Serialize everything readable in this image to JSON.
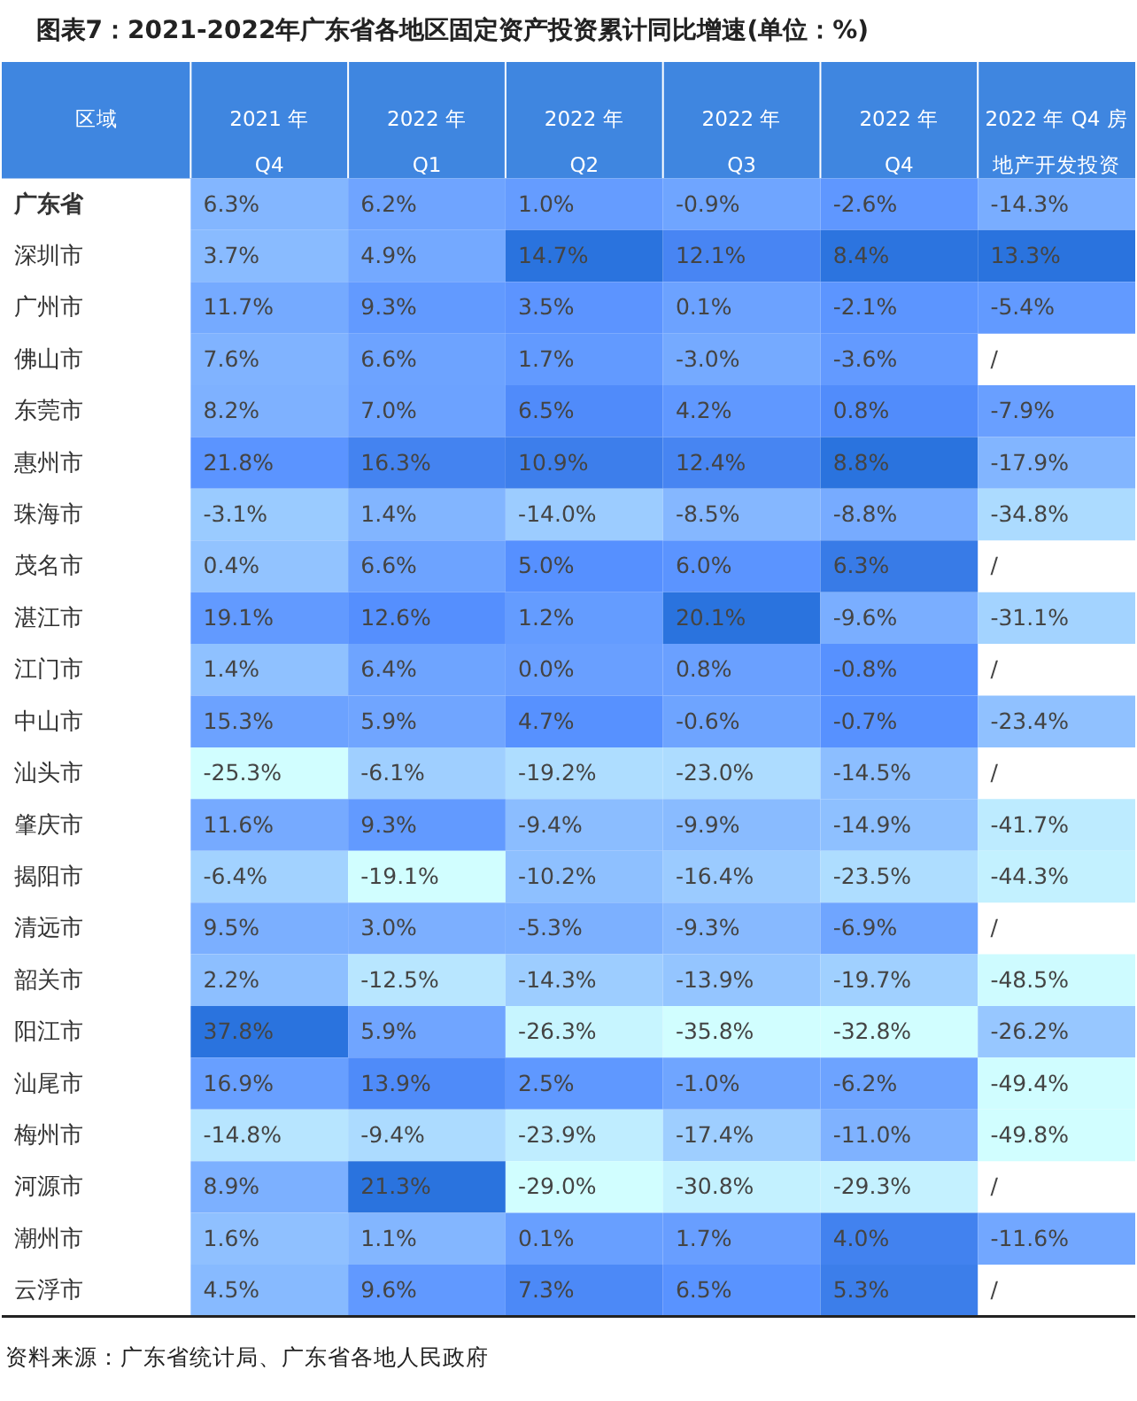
{
  "chart_data": {
    "type": "heatmap",
    "title": "图表7：2021-2022年广东省各地区固定资产投资累计同比增速(单位：%)",
    "ylabel": "区域",
    "categories": [
      "2021 年\nQ4",
      "2022 年\nQ1",
      "2022 年\nQ2",
      "2022 年\nQ3",
      "2022 年\nQ4",
      "2022 年 Q4 房地产开发投资"
    ],
    "y_categories": [
      "广东省",
      "深圳市",
      "广州市",
      "佛山市",
      "东莞市",
      "惠州市",
      "珠海市",
      "茂名市",
      "湛江市",
      "江门市",
      "中山市",
      "汕头市",
      "肇庆市",
      "揭阳市",
      "清远市",
      "韶关市",
      "阳江市",
      "汕尾市",
      "梅州市",
      "河源市",
      "潮州市",
      "云浮市"
    ],
    "colors": [
      "#ffffff",
      "#2a73de"
    ],
    "cells": [
      [
        6.3,
        6.2,
        1.0,
        -0.9,
        -2.6,
        -14.3
      ],
      [
        3.7,
        4.9,
        14.7,
        12.1,
        8.4,
        13.3
      ],
      [
        11.7,
        9.3,
        3.5,
        0.1,
        -2.1,
        -5.4
      ],
      [
        7.6,
        6.6,
        1.7,
        -3.0,
        -3.6,
        null
      ],
      [
        8.2,
        7.0,
        6.5,
        4.2,
        0.8,
        -7.9
      ],
      [
        21.8,
        16.3,
        10.9,
        12.4,
        8.8,
        -17.9
      ],
      [
        -3.1,
        1.4,
        -14.0,
        -8.5,
        -8.8,
        -34.8
      ],
      [
        0.4,
        6.6,
        5.0,
        6.0,
        6.3,
        null
      ],
      [
        19.1,
        12.6,
        1.2,
        20.1,
        -9.6,
        -31.1
      ],
      [
        1.4,
        6.4,
        0.0,
        0.8,
        -0.8,
        null
      ],
      [
        15.3,
        5.9,
        4.7,
        -0.6,
        -0.7,
        -23.4
      ],
      [
        -25.3,
        -6.1,
        -19.2,
        -23.0,
        -14.5,
        null
      ],
      [
        11.6,
        9.3,
        -9.4,
        -9.9,
        -14.9,
        -41.7
      ],
      [
        -6.4,
        -19.1,
        -10.2,
        -16.4,
        -23.5,
        -44.3
      ],
      [
        9.5,
        3.0,
        -5.3,
        -9.3,
        -6.9,
        null
      ],
      [
        2.2,
        -12.5,
        -14.3,
        -13.9,
        -19.7,
        -48.5
      ],
      [
        37.8,
        5.9,
        -26.3,
        -35.8,
        -32.8,
        -26.2
      ],
      [
        16.9,
        13.9,
        2.5,
        -1.0,
        -6.2,
        -49.4
      ],
      [
        -14.8,
        -9.4,
        -23.9,
        -17.4,
        -11.0,
        -49.8
      ],
      [
        8.9,
        21.3,
        -29.0,
        -30.8,
        -29.3,
        null
      ],
      [
        1.6,
        1.1,
        0.1,
        1.7,
        4.0,
        -11.6
      ],
      [
        4.5,
        9.6,
        7.3,
        6.5,
        5.3,
        null
      ]
    ],
    "cell_labels": [
      [
        "6.3%",
        "6.2%",
        "1.0%",
        "-0.9%",
        "-2.6%",
        "-14.3%"
      ],
      [
        "3.7%",
        "4.9%",
        "14.7%",
        "12.1%",
        "8.4%",
        "13.3%"
      ],
      [
        "11.7%",
        "9.3%",
        "3.5%",
        "0.1%",
        "-2.1%",
        "-5.4%"
      ],
      [
        "7.6%",
        "6.6%",
        "1.7%",
        "-3.0%",
        "-3.6%",
        "/"
      ],
      [
        "8.2%",
        "7.0%",
        "6.5%",
        "4.2%",
        "0.8%",
        "-7.9%"
      ],
      [
        "21.8%",
        "16.3%",
        "10.9%",
        "12.4%",
        "8.8%",
        "-17.9%"
      ],
      [
        "-3.1%",
        "1.4%",
        "-14.0%",
        "-8.5%",
        "-8.8%",
        "-34.8%"
      ],
      [
        "0.4%",
        "6.6%",
        "5.0%",
        "6.0%",
        "6.3%",
        "/"
      ],
      [
        "19.1%",
        "12.6%",
        "1.2%",
        "20.1%",
        "-9.6%",
        "-31.1%"
      ],
      [
        "1.4%",
        "6.4%",
        "0.0%",
        "0.8%",
        "-0.8%",
        "/"
      ],
      [
        "15.3%",
        "5.9%",
        "4.7%",
        "-0.6%",
        "-0.7%",
        "-23.4%"
      ],
      [
        "-25.3%",
        "-6.1%",
        "-19.2%",
        "-23.0%",
        "-14.5%",
        "/"
      ],
      [
        "11.6%",
        "9.3%",
        "-9.4%",
        "-9.9%",
        "-14.9%",
        "-41.7%"
      ],
      [
        "-6.4%",
        "-19.1%",
        "-10.2%",
        "-16.4%",
        "-23.5%",
        "-44.3%"
      ],
      [
        "9.5%",
        "3.0%",
        "-5.3%",
        "-9.3%",
        "-6.9%",
        "/"
      ],
      [
        "2.2%",
        "-12.5%",
        "-14.3%",
        "-13.9%",
        "-19.7%",
        "-48.5%"
      ],
      [
        "37.8%",
        "5.9%",
        "-26.3%",
        "-35.8%",
        "-32.8%",
        "-26.2%"
      ],
      [
        "16.9%",
        "13.9%",
        "2.5%",
        "-1.0%",
        "-6.2%",
        "-49.4%"
      ],
      [
        "-14.8%",
        "-9.4%",
        "-23.9%",
        "-17.4%",
        "-11.0%",
        "-49.8%"
      ],
      [
        "8.9%",
        "21.3%",
        "-29.0%",
        "-30.8%",
        "-29.3%",
        "/"
      ],
      [
        "1.6%",
        "1.1%",
        "0.1%",
        "1.7%",
        "4.0%",
        "-11.6%"
      ],
      [
        "4.5%",
        "9.6%",
        "7.3%",
        "6.5%",
        "5.3%",
        "/"
      ]
    ],
    "annotations": [
      "资料来源：广东省统计局、广东省各地人民政府"
    ]
  }
}
